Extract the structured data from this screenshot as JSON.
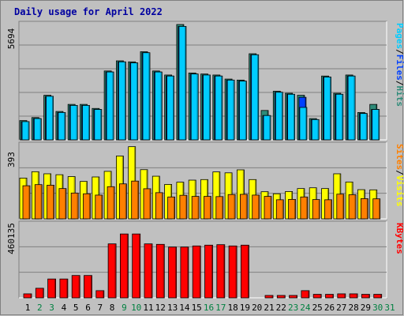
{
  "chart_data": {
    "type": "bar",
    "title": "Daily usage for April 2022",
    "days": [
      "1",
      "2",
      "3",
      "4",
      "5",
      "6",
      "7",
      "8",
      "9",
      "10",
      "11",
      "12",
      "13",
      "14",
      "15",
      "16",
      "17",
      "18",
      "19",
      "20",
      "21",
      "22",
      "23",
      "24",
      "25",
      "26",
      "27",
      "28",
      "29",
      "30",
      "31"
    ],
    "weekend_days": [
      "2",
      "3",
      "9",
      "10",
      "16",
      "17",
      "23",
      "24",
      "30",
      "31"
    ],
    "panels": [
      {
        "id": "pages-files-hits",
        "ymax_label": "5694",
        "ymax": 5694,
        "legend": [
          "Pages",
          "/",
          "Files",
          "/",
          "Hits"
        ],
        "legend_colors": [
          "#00ccff",
          "#000000",
          "#0040ff",
          "#000000",
          "#2e8b79"
        ],
        "series": [
          {
            "name": "Hits",
            "color": "#2e8b79",
            "values": [
              950,
              1100,
              2200,
              1400,
              1750,
              1750,
              1550,
              3400,
              3900,
              3850,
              4350,
              3400,
              3200,
              5694,
              3300,
              3250,
              3200,
              3000,
              2950,
              4250,
              1450,
              2400,
              2300,
              2200,
              1050,
              3150,
              2300,
              3200,
              1350,
              1750,
              0
            ]
          },
          {
            "name": "Files",
            "color": "#0040ff",
            "values": [
              900,
              1050,
              2150,
              1350,
              1700,
              1700,
              1500,
              3350,
              3850,
              3800,
              4300,
              3350,
              3150,
              5600,
              3250,
              3200,
              3150,
              2950,
              2900,
              4200,
              1200,
              2350,
              2250,
              2100,
              1000,
              3100,
              2250,
              3150,
              1300,
              1500,
              0
            ]
          },
          {
            "name": "Pages",
            "color": "#00ccff",
            "values": [
              900,
              1050,
              2150,
              1350,
              1700,
              1700,
              1500,
              3350,
              3850,
              3800,
              4300,
              3350,
              3150,
              5600,
              3250,
              3200,
              3150,
              2950,
              2900,
              4200,
              1200,
              2350,
              2250,
              1600,
              1000,
              3100,
              2250,
              3150,
              1300,
              1500,
              0
            ]
          }
        ]
      },
      {
        "id": "sites-visits",
        "ymax_label": "393",
        "ymax": 393,
        "legend": [
          "Sites",
          "/",
          "Visits"
        ],
        "legend_colors": [
          "#ff8000",
          "#000000",
          "#ffff00"
        ],
        "series": [
          {
            "name": "Visits",
            "color": "#ffff00",
            "values": [
              218,
              252,
              241,
              236,
              226,
              200,
              224,
              254,
              336,
              386,
              263,
              228,
              184,
              196,
              207,
              210,
              251,
              246,
              262,
              210,
              145,
              134,
              146,
              162,
              166,
              162,
              241,
              197,
              156,
              155,
              0
            ]
          },
          {
            "name": "Sites",
            "color": "#ff8000",
            "values": [
              177,
              183,
              180,
              162,
              138,
              134,
              127,
              172,
              187,
              202,
              161,
              140,
              117,
              126,
              120,
              120,
              119,
              130,
              131,
              127,
              120,
              102,
              104,
              117,
              103,
              102,
              132,
              129,
              108,
              107,
              0
            ]
          }
        ]
      },
      {
        "id": "kbytes",
        "ymax_label": "460135",
        "ymax": 460135,
        "legend": [
          "KBytes"
        ],
        "legend_colors": [
          "#ff0000"
        ],
        "series": [
          {
            "name": "KBytes",
            "color": "#ff0000",
            "values": [
              25000,
              60000,
              118000,
              118000,
              140000,
              140000,
              45000,
              338000,
              400000,
              400000,
              338000,
              335000,
              318000,
              318000,
              325000,
              330000,
              333000,
              325000,
              330000,
              0,
              15000,
              15000,
              15000,
              45000,
              22000,
              22000,
              25000,
              25000,
              22000,
              22000,
              0
            ]
          }
        ]
      }
    ]
  }
}
